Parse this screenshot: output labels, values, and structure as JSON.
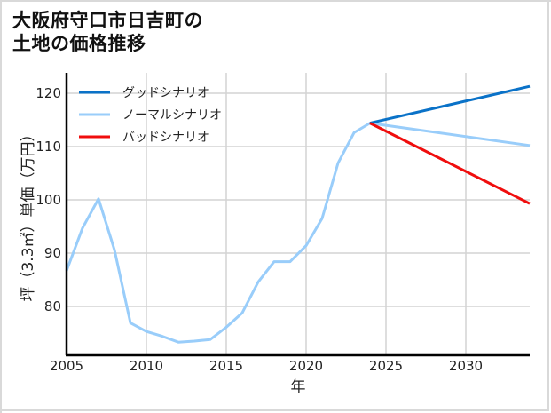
{
  "title_line1": "大阪府守口市日吉町の",
  "title_line2": "土地の価格推移",
  "chart_data": {
    "type": "line",
    "title": "大阪府守口市日吉町の土地の価格推移",
    "xlabel": "年",
    "ylabel": "坪（3.3㎡）単価（万円）",
    "xlim": [
      2005,
      2034
    ],
    "ylim": [
      70.5,
      123.5
    ],
    "x_ticks": [
      2005,
      2010,
      2015,
      2020,
      2025,
      2030
    ],
    "y_ticks": [
      80,
      90,
      100,
      110,
      120
    ],
    "grid": true,
    "legend_position": "upper left",
    "series": [
      {
        "name": "グッドシナリオ",
        "color": "#0a72c8",
        "x": [
          2024,
          2034
        ],
        "values": [
          114.4,
          121.3
        ]
      },
      {
        "name": "ノーマルシナリオ",
        "color": "#99cdfa",
        "x": [
          2005,
          2006,
          2007,
          2008,
          2009,
          2010,
          2011,
          2012,
          2013,
          2014,
          2015,
          2016,
          2017,
          2018,
          2019,
          2020,
          2021,
          2022,
          2023,
          2024,
          2034
        ],
        "values": [
          86.7,
          94.7,
          100.2,
          90.6,
          76.9,
          75.3,
          74.4,
          73.3,
          73.5,
          73.8,
          76.1,
          78.8,
          84.6,
          88.4,
          88.4,
          91.4,
          96.5,
          106.9,
          112.6,
          114.4,
          110.2
        ]
      },
      {
        "name": "バッドシナリオ",
        "color": "#f00d0d",
        "x": [
          2024,
          2034
        ],
        "values": [
          114.4,
          99.3
        ]
      }
    ]
  },
  "legend": [
    {
      "label": "グッドシナリオ",
      "color": "#0a72c8"
    },
    {
      "label": "ノーマルシナリオ",
      "color": "#99cdfa"
    },
    {
      "label": "バッドシナリオ",
      "color": "#f00d0d"
    }
  ],
  "axis": {
    "xlabel": "年",
    "ylabel": "坪（3.3㎡）単価（万円）",
    "x_tick_labels": [
      "2005",
      "2010",
      "2015",
      "2020",
      "2025",
      "2030"
    ],
    "y_tick_labels": [
      "120",
      "110",
      "100",
      "90",
      "80"
    ]
  }
}
